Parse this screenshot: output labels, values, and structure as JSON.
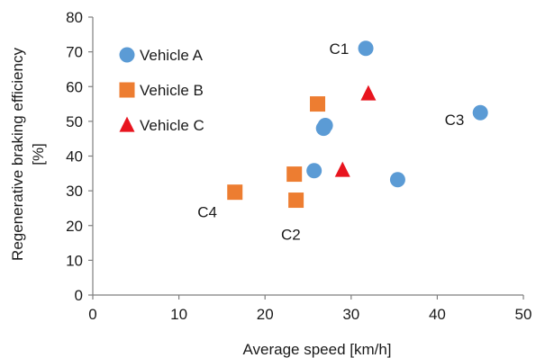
{
  "chart_data": {
    "type": "scatter",
    "xlabel": "Average speed  [km/h]",
    "ylabel": "Regenerative braking efficiency",
    "ylabel_unit": "[%]",
    "xlim": [
      0,
      50
    ],
    "ylim": [
      0,
      80
    ],
    "xticks": [
      0,
      10,
      20,
      30,
      40,
      50
    ],
    "yticks": [
      0,
      10,
      20,
      30,
      40,
      50,
      60,
      70,
      80
    ],
    "grid": false,
    "legend_position": "top-left",
    "series": [
      {
        "name": "Vehicle A",
        "marker": "circle",
        "color": "#5b9bd5",
        "points": [
          {
            "x": 31.7,
            "y": 71.0
          },
          {
            "x": 45.0,
            "y": 52.5
          },
          {
            "x": 27.0,
            "y": 48.8
          },
          {
            "x": 26.8,
            "y": 48.0
          },
          {
            "x": 25.7,
            "y": 35.8
          },
          {
            "x": 35.4,
            "y": 33.2
          }
        ]
      },
      {
        "name": "Vehicle B",
        "marker": "square",
        "color": "#ed7d31",
        "points": [
          {
            "x": 26.1,
            "y": 55.0
          },
          {
            "x": 23.4,
            "y": 34.8
          },
          {
            "x": 23.6,
            "y": 27.3
          },
          {
            "x": 16.5,
            "y": 29.6
          }
        ]
      },
      {
        "name": "Vehicle C",
        "marker": "triangle",
        "color": "#e8141e",
        "points": [
          {
            "x": 32.0,
            "y": 58.0
          },
          {
            "x": 29.0,
            "y": 36.0
          }
        ]
      }
    ],
    "annotations": [
      {
        "text": "C1",
        "x": 28.6,
        "y": 71.0
      },
      {
        "text": "C2",
        "x": 23.0,
        "y": 17.5
      },
      {
        "text": "C3",
        "x": 42.0,
        "y": 50.5
      },
      {
        "text": "C4",
        "x": 13.3,
        "y": 24.0
      }
    ]
  }
}
